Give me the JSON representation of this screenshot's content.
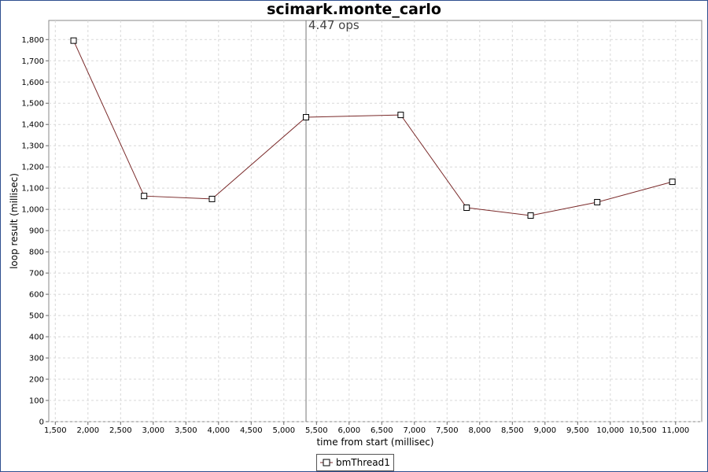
{
  "chart_data": {
    "type": "line",
    "title": "scimark.monte_carlo",
    "xlabel": "time from start (millisec)",
    "ylabel": "loop result (millisec)",
    "xlim": [
      1400,
      11400
    ],
    "ylim": [
      0,
      1890
    ],
    "xticks": [
      1500,
      2000,
      2500,
      3000,
      3500,
      4000,
      4500,
      5000,
      5500,
      6000,
      6500,
      7000,
      7500,
      8000,
      8500,
      9000,
      9500,
      10000,
      10500,
      11000
    ],
    "xtick_labels": [
      "1,500",
      "2,000",
      "2,500",
      "3,000",
      "3,500",
      "4,000",
      "4,500",
      "5,000",
      "5,500",
      "6,000",
      "6,500",
      "7,000",
      "7,500",
      "8,000",
      "8,500",
      "9,000",
      "9,500",
      "10,000",
      "10,500",
      "11,000"
    ],
    "yticks": [
      0,
      100,
      200,
      300,
      400,
      500,
      600,
      700,
      800,
      900,
      1000,
      1100,
      1200,
      1300,
      1400,
      1500,
      1600,
      1700,
      1800
    ],
    "ytick_labels": [
      "0",
      "100",
      "200",
      "300",
      "400",
      "500",
      "600",
      "700",
      "800",
      "900",
      "1,000",
      "1,100",
      "1,200",
      "1,300",
      "1,400",
      "1,500",
      "1,600",
      "1,700",
      "1,800"
    ],
    "grid": true,
    "legend_position": "bottom",
    "series": [
      {
        "name": "bmThread1",
        "color": "#7a2a2a",
        "marker": "square",
        "x": [
          1780,
          2860,
          3900,
          5340,
          6790,
          7800,
          8780,
          9800,
          10950
        ],
        "y": [
          1795,
          1063,
          1049,
          1434,
          1445,
          1008,
          971,
          1034,
          1130
        ]
      }
    ],
    "vertical_marker": {
      "x": 5340,
      "label": "4.47 ops"
    }
  }
}
